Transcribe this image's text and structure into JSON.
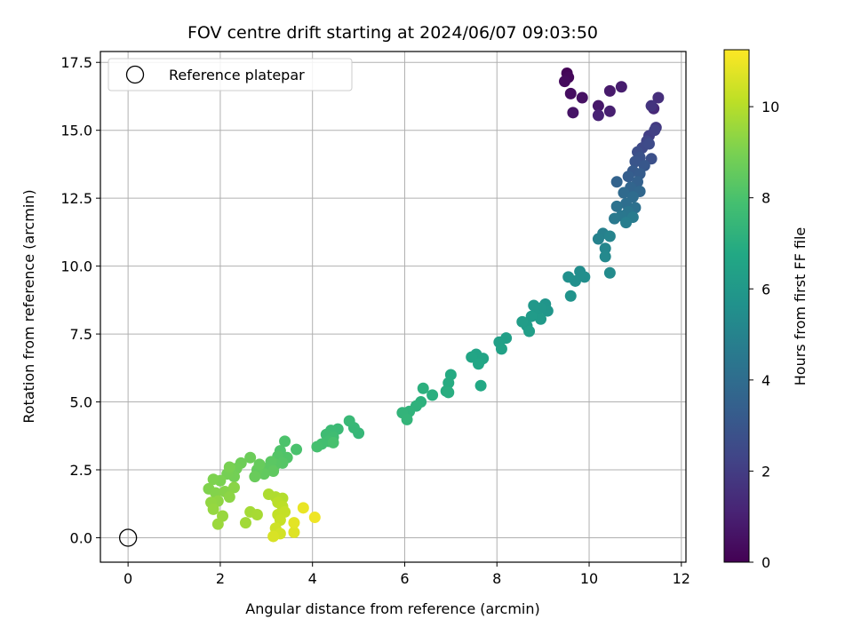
{
  "chart_data": {
    "type": "scatter",
    "title": "FOV centre drift starting at 2024/06/07 09:03:50",
    "xlabel": "Angular distance from reference (arcmin)",
    "ylabel": "Rotation from reference (arcmin)",
    "colorbar_label": "Hours from first FF file",
    "xlim": [
      -0.6,
      12.1
    ],
    "ylim": [
      -0.9,
      17.9
    ],
    "clim": [
      0,
      11.25
    ],
    "colormap": "viridis",
    "grid": true,
    "legend_position": "top-left",
    "xticks": [
      0,
      2,
      4,
      6,
      8,
      10,
      12
    ],
    "xtick_labels": [
      "0",
      "2",
      "4",
      "6",
      "8",
      "10",
      "12"
    ],
    "yticks": [
      0,
      2.5,
      5,
      7.5,
      10,
      12.5,
      15,
      17.5
    ],
    "ytick_labels": [
      "0.0",
      "2.5",
      "5.0",
      "7.5",
      "10.0",
      "12.5",
      "15.0",
      "17.5"
    ],
    "cticks": [
      0,
      2,
      4,
      6,
      8,
      10
    ],
    "ctick_labels": [
      "0",
      "2",
      "4",
      "6",
      "8",
      "10"
    ],
    "reference": {
      "label": "Reference platepar",
      "x": 0,
      "y": 0
    },
    "points": [
      [
        9.52,
        17.1,
        0.1
      ],
      [
        9.55,
        16.95,
        0.2
      ],
      [
        9.47,
        16.8,
        0.3
      ],
      [
        9.6,
        16.35,
        0.4
      ],
      [
        9.85,
        16.2,
        0.5
      ],
      [
        9.65,
        15.65,
        0.6
      ],
      [
        10.2,
        15.9,
        0.7
      ],
      [
        10.45,
        16.45,
        0.8
      ],
      [
        10.7,
        16.6,
        0.9
      ],
      [
        10.45,
        15.7,
        1.0
      ],
      [
        10.2,
        15.55,
        1.1
      ],
      [
        11.4,
        15.8,
        1.3
      ],
      [
        11.5,
        16.2,
        1.5
      ],
      [
        11.35,
        15.9,
        1.7
      ],
      [
        11.45,
        15.1,
        1.9
      ],
      [
        11.3,
        14.8,
        2.05
      ],
      [
        11.42,
        15.0,
        2.15
      ],
      [
        11.25,
        14.6,
        2.3
      ],
      [
        11.15,
        14.35,
        2.45
      ],
      [
        11.3,
        14.5,
        2.55
      ],
      [
        11.05,
        14.2,
        2.65
      ],
      [
        11.35,
        13.95,
        2.75
      ],
      [
        11.1,
        14.0,
        2.85
      ],
      [
        11.0,
        13.85,
        2.95
      ],
      [
        11.2,
        13.7,
        3.05
      ],
      [
        10.95,
        13.5,
        3.15
      ],
      [
        11.1,
        13.4,
        3.25
      ],
      [
        10.85,
        13.3,
        3.35
      ],
      [
        11.05,
        13.1,
        3.45
      ],
      [
        10.6,
        13.1,
        3.55
      ],
      [
        10.9,
        12.9,
        3.65
      ],
      [
        11.1,
        12.75,
        3.75
      ],
      [
        10.75,
        12.7,
        3.85
      ],
      [
        10.95,
        12.55,
        3.95
      ],
      [
        10.8,
        12.3,
        4.05
      ],
      [
        11.0,
        12.15,
        4.15
      ],
      [
        10.6,
        12.2,
        4.25
      ],
      [
        10.85,
        12.0,
        4.35
      ],
      [
        10.7,
        11.85,
        4.45
      ],
      [
        10.55,
        11.75,
        4.55
      ],
      [
        10.95,
        11.8,
        4.65
      ],
      [
        10.8,
        11.6,
        4.75
      ],
      [
        10.3,
        11.2,
        4.85
      ],
      [
        10.2,
        11.0,
        4.95
      ],
      [
        10.45,
        11.1,
        5.05
      ],
      [
        10.35,
        10.65,
        5.15
      ],
      [
        10.35,
        10.35,
        5.25
      ],
      [
        10.45,
        9.75,
        5.35
      ],
      [
        9.8,
        9.8,
        5.45
      ],
      [
        9.9,
        9.6,
        5.5
      ],
      [
        9.7,
        9.45,
        5.55
      ],
      [
        9.55,
        9.6,
        5.6
      ],
      [
        9.6,
        8.9,
        5.7
      ],
      [
        9.05,
        8.6,
        5.8
      ],
      [
        9.1,
        8.35,
        5.85
      ],
      [
        8.95,
        8.45,
        5.9
      ],
      [
        8.8,
        8.55,
        5.95
      ],
      [
        8.85,
        8.2,
        6.0
      ],
      [
        8.95,
        8.05,
        6.05
      ],
      [
        8.75,
        8.15,
        6.1
      ],
      [
        8.65,
        7.8,
        6.15
      ],
      [
        8.55,
        7.95,
        6.2
      ],
      [
        8.7,
        7.6,
        6.25
      ],
      [
        8.2,
        7.35,
        6.3
      ],
      [
        8.05,
        7.2,
        6.35
      ],
      [
        8.1,
        6.95,
        6.4
      ],
      [
        7.65,
        6.55,
        6.45
      ],
      [
        7.55,
        6.75,
        6.5
      ],
      [
        7.7,
        6.6,
        6.55
      ],
      [
        7.45,
        6.65,
        6.6
      ],
      [
        7.6,
        6.4,
        6.65
      ],
      [
        7.65,
        5.6,
        6.75
      ],
      [
        7.0,
        6.0,
        6.85
      ],
      [
        6.95,
        5.7,
        6.9
      ],
      [
        6.9,
        5.4,
        6.95
      ],
      [
        6.95,
        5.35,
        7.0
      ],
      [
        6.6,
        5.25,
        7.05
      ],
      [
        6.4,
        5.5,
        7.1
      ],
      [
        6.35,
        5.0,
        7.15
      ],
      [
        6.25,
        4.85,
        7.2
      ],
      [
        6.1,
        4.65,
        7.25
      ],
      [
        5.95,
        4.6,
        7.3
      ],
      [
        6.05,
        4.35,
        7.35
      ],
      [
        5.0,
        3.85,
        7.45
      ],
      [
        4.9,
        4.05,
        7.5
      ],
      [
        4.8,
        4.3,
        7.55
      ],
      [
        4.55,
        4.0,
        7.6
      ],
      [
        4.4,
        3.95,
        7.65
      ],
      [
        4.3,
        3.8,
        7.7
      ],
      [
        4.45,
        3.7,
        7.75
      ],
      [
        4.35,
        3.55,
        7.8
      ],
      [
        4.2,
        3.45,
        7.85
      ],
      [
        4.1,
        3.35,
        7.9
      ],
      [
        4.45,
        3.5,
        7.95
      ],
      [
        3.65,
        3.25,
        8.0
      ],
      [
        3.4,
        3.55,
        8.05
      ],
      [
        3.3,
        3.2,
        8.1
      ],
      [
        3.45,
        2.95,
        8.15
      ],
      [
        3.25,
        3.0,
        8.2
      ],
      [
        3.35,
        2.75,
        8.25
      ],
      [
        3.2,
        2.7,
        8.3
      ],
      [
        3.1,
        2.8,
        8.35
      ],
      [
        3.0,
        2.55,
        8.4
      ],
      [
        3.15,
        2.45,
        8.45
      ],
      [
        2.95,
        2.35,
        8.5
      ],
      [
        2.8,
        2.5,
        8.55
      ],
      [
        2.85,
        2.7,
        8.6
      ],
      [
        2.75,
        2.25,
        8.65
      ],
      [
        2.65,
        2.95,
        8.7
      ],
      [
        2.45,
        2.75,
        8.75
      ],
      [
        2.35,
        2.55,
        8.8
      ],
      [
        2.3,
        2.25,
        8.85
      ],
      [
        2.15,
        2.35,
        8.9
      ],
      [
        2.2,
        2.6,
        8.95
      ],
      [
        2.0,
        2.1,
        9.0
      ],
      [
        1.85,
        2.15,
        9.05
      ],
      [
        1.75,
        1.8,
        9.1
      ],
      [
        1.9,
        1.65,
        9.15
      ],
      [
        2.1,
        1.7,
        9.2
      ],
      [
        2.3,
        1.85,
        9.25
      ],
      [
        2.2,
        1.5,
        9.3
      ],
      [
        1.95,
        1.35,
        9.35
      ],
      [
        1.8,
        1.3,
        9.4
      ],
      [
        1.85,
        1.05,
        9.45
      ],
      [
        2.05,
        0.8,
        9.5
      ],
      [
        1.95,
        0.5,
        9.55
      ],
      [
        2.55,
        0.55,
        9.65
      ],
      [
        2.65,
        0.95,
        9.7
      ],
      [
        2.8,
        0.85,
        9.75
      ],
      [
        3.05,
        1.6,
        9.85
      ],
      [
        3.2,
        1.5,
        9.9
      ],
      [
        3.35,
        1.45,
        9.95
      ],
      [
        3.25,
        1.3,
        10.05
      ],
      [
        3.35,
        1.15,
        10.1
      ],
      [
        3.25,
        0.85,
        10.2
      ],
      [
        3.4,
        0.95,
        10.25
      ],
      [
        3.3,
        0.65,
        10.3
      ],
      [
        3.2,
        0.35,
        10.4
      ],
      [
        3.3,
        0.15,
        10.5
      ],
      [
        3.15,
        0.05,
        10.6
      ],
      [
        3.6,
        0.2,
        10.7
      ],
      [
        3.6,
        0.55,
        10.8
      ],
      [
        3.8,
        1.1,
        10.9
      ],
      [
        4.05,
        0.75,
        11.0
      ]
    ]
  }
}
